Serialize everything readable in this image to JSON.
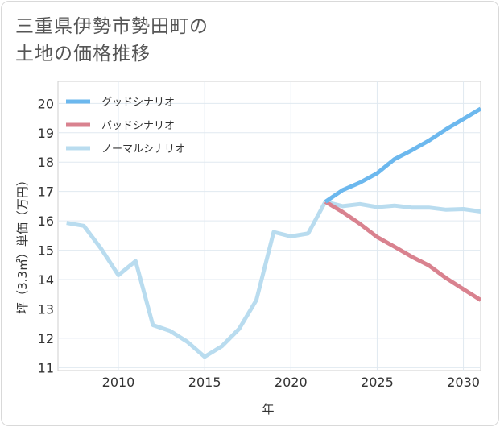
{
  "title": {
    "line1": "三重県伊勢市勢田町の",
    "line2": "土地の価格推移"
  },
  "chart_data": {
    "type": "line",
    "xlabel": "年",
    "ylabel": "坪（3.3㎡）単価（万円）",
    "xlim": [
      2006.5,
      2031
    ],
    "ylim": [
      10.9,
      20.75
    ],
    "x_ticks": [
      2010,
      2015,
      2020,
      2025,
      2030
    ],
    "y_ticks": [
      11,
      12,
      13,
      14,
      15,
      16,
      17,
      18,
      19,
      20
    ],
    "grid": true,
    "legend_position": "top-left",
    "series": [
      {
        "name": "グッドシナリオ",
        "color": "#6cb8ee",
        "points": [
          [
            2022,
            16.65
          ],
          [
            2023,
            17.05
          ],
          [
            2024,
            17.3
          ],
          [
            2025,
            17.62
          ],
          [
            2026,
            18.1
          ],
          [
            2027,
            18.4
          ],
          [
            2028,
            18.73
          ],
          [
            2029,
            19.12
          ],
          [
            2030,
            19.47
          ],
          [
            2031,
            19.82
          ]
        ]
      },
      {
        "name": "バッドシナリオ",
        "color": "#d9828f",
        "points": [
          [
            2022,
            16.65
          ],
          [
            2023,
            16.3
          ],
          [
            2024,
            15.9
          ],
          [
            2025,
            15.45
          ],
          [
            2026,
            15.12
          ],
          [
            2027,
            14.78
          ],
          [
            2028,
            14.48
          ],
          [
            2029,
            14.05
          ],
          [
            2030,
            13.67
          ],
          [
            2031,
            13.3
          ]
        ]
      },
      {
        "name": "ノーマルシナリオ",
        "color": "#b9dcef",
        "points": [
          [
            2007,
            15.93
          ],
          [
            2008,
            15.83
          ],
          [
            2009,
            15.05
          ],
          [
            2010,
            14.15
          ],
          [
            2011,
            14.63
          ],
          [
            2012,
            12.45
          ],
          [
            2013,
            12.25
          ],
          [
            2014,
            11.88
          ],
          [
            2015,
            11.37
          ],
          [
            2016,
            11.73
          ],
          [
            2017,
            12.32
          ],
          [
            2018,
            13.3
          ],
          [
            2019,
            15.62
          ],
          [
            2020,
            15.47
          ],
          [
            2021,
            15.57
          ],
          [
            2022,
            16.65
          ],
          [
            2023,
            16.5
          ],
          [
            2024,
            16.57
          ],
          [
            2025,
            16.47
          ],
          [
            2026,
            16.52
          ],
          [
            2027,
            16.45
          ],
          [
            2028,
            16.45
          ],
          [
            2029,
            16.38
          ],
          [
            2030,
            16.4
          ],
          [
            2031,
            16.32
          ]
        ]
      }
    ]
  }
}
